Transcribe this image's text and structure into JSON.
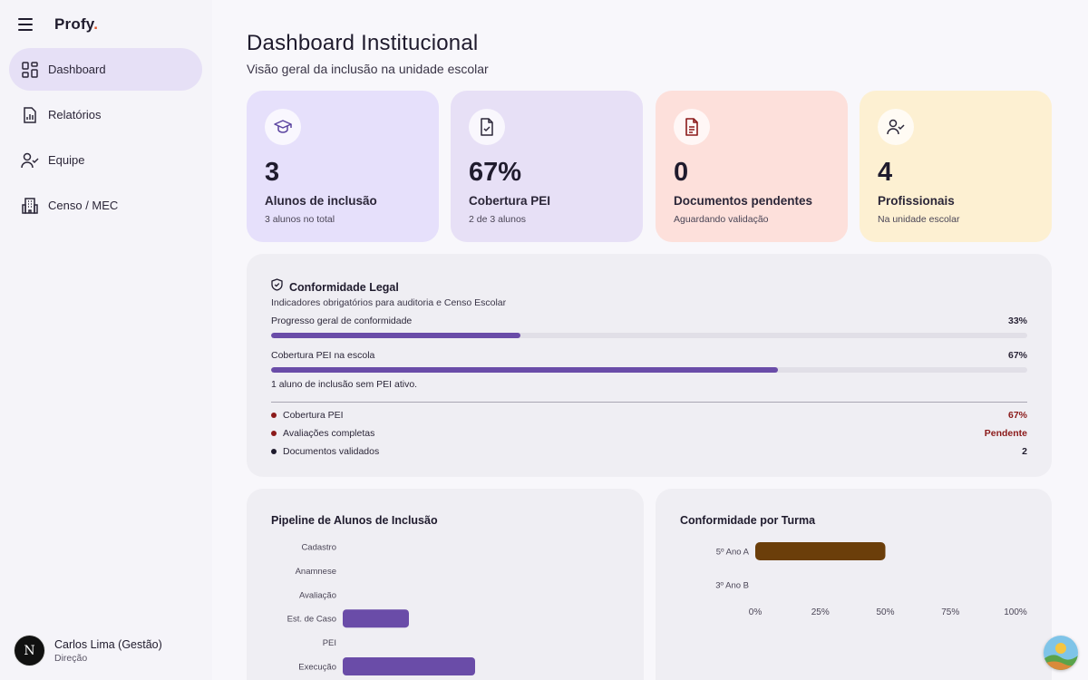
{
  "app": {
    "brand": "Profy",
    "brand_dot": "."
  },
  "sidebar": {
    "items": [
      {
        "label": "Dashboard",
        "icon": "dashboard-icon",
        "active": true
      },
      {
        "label": "Relatórios",
        "icon": "report-icon",
        "active": false
      },
      {
        "label": "Equipe",
        "icon": "team-icon",
        "active": false
      },
      {
        "label": "Censo / MEC",
        "icon": "building-icon",
        "active": false
      }
    ]
  },
  "user": {
    "initial": "N",
    "name": "Carlos Lima (Gestão)",
    "role": "Direção"
  },
  "header": {
    "title": "Dashboard Institucional",
    "subtitle": "Visão geral da inclusão na unidade escolar"
  },
  "stats": [
    {
      "value": "3",
      "title": "Alunos de inclusão",
      "desc": "3 alunos no total",
      "bg": "#e6e0fb",
      "icon": "graduation-cap-icon"
    },
    {
      "value": "67%",
      "title": "Cobertura PEI",
      "desc": "2 de 3 alunos",
      "bg": "#e7e0f6",
      "icon": "file-check-icon"
    },
    {
      "value": "0",
      "title": "Documentos pendentes",
      "desc": "Aguardando validação",
      "bg": "#fde0db",
      "icon": "document-icon"
    },
    {
      "value": "4",
      "title": "Profissionais",
      "desc": "Na unidade escolar",
      "bg": "#fdf0d2",
      "icon": "user-check-icon"
    }
  ],
  "legal": {
    "title": "Conformidade Legal",
    "subtitle": "Indicadores obrigatórios para auditoria e Censo Escolar",
    "progress": [
      {
        "label": "Progresso geral de conformidade",
        "value_text": "33%",
        "value": 33
      },
      {
        "label": "Cobertura PEI na escola",
        "value_text": "67%",
        "value": 67
      }
    ],
    "note": "1 aluno de inclusão sem PEI ativo.",
    "items": [
      {
        "label": "Cobertura PEI",
        "value": "67%",
        "color": "#8b1a1a"
      },
      {
        "label": "Avaliações completas",
        "value": "Pendente",
        "color": "#8b1a1a"
      },
      {
        "label": "Documentos validados",
        "value": "2",
        "color": "#1f1b2d"
      }
    ]
  },
  "pipeline": {
    "title": "Pipeline de Alunos de Inclusão"
  },
  "conformidade": {
    "title": "Conformidade por Turma"
  },
  "chart_data": [
    {
      "type": "bar",
      "orientation": "horizontal",
      "title": "Pipeline de Alunos de Inclusão",
      "categories": [
        "Cadastro",
        "Anamnese",
        "Avaliação",
        "Est. de Caso",
        "PEI",
        "Execução"
      ],
      "values": [
        0,
        0,
        0,
        1,
        0,
        2
      ],
      "color": "#6a4ca8"
    },
    {
      "type": "bar",
      "orientation": "horizontal",
      "title": "Conformidade por Turma",
      "categories": [
        "5º Ano A",
        "3º Ano B"
      ],
      "values": [
        50,
        0
      ],
      "xlim": [
        0,
        100
      ],
      "xticks": [
        "0%",
        "25%",
        "50%",
        "75%",
        "100%"
      ],
      "color": "#6b3e0a"
    }
  ]
}
